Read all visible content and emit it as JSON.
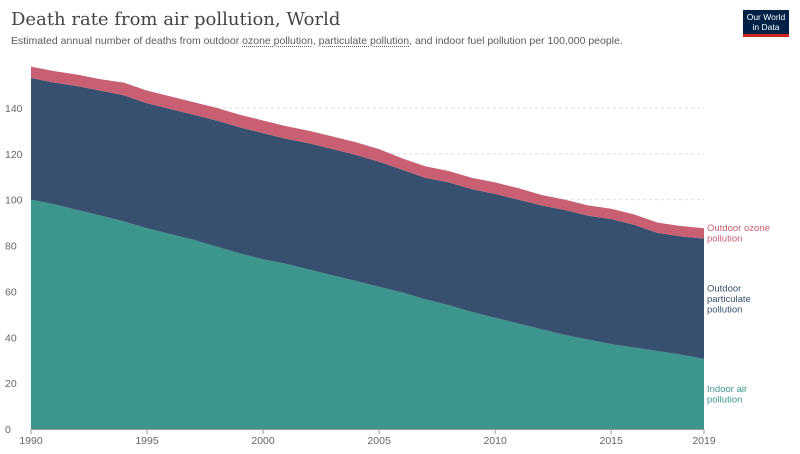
{
  "header": {
    "title": "Death rate from air pollution, World",
    "subtitle_start": "Estimated annual number of deaths from outdoor ",
    "subtitle_link1": "ozone pollution",
    "subtitle_mid": ", ",
    "subtitle_link2": "particulate pollution",
    "subtitle_end": ", and indoor fuel pollution per 100,000 people."
  },
  "logo": {
    "line1": "Our World",
    "line2": "in Data",
    "bg": "#002147",
    "accent": "#ce261e"
  },
  "chart_data": {
    "type": "area",
    "stacked": true,
    "title": "Death rate from air pollution, World",
    "x": [
      1990,
      1991,
      1992,
      1993,
      1994,
      1995,
      1996,
      1997,
      1998,
      1999,
      2000,
      2001,
      2002,
      2003,
      2004,
      2005,
      2006,
      2007,
      2008,
      2009,
      2010,
      2011,
      2012,
      2013,
      2014,
      2015,
      2016,
      2017,
      2018,
      2019
    ],
    "ylim": [
      0,
      160
    ],
    "yticks": [
      0,
      20,
      40,
      60,
      80,
      100,
      120,
      140
    ],
    "xticks": [
      1990,
      1995,
      2000,
      2005,
      2010,
      2015,
      2019
    ],
    "grid": "horizontal dashed",
    "series": [
      {
        "name": "Indoor air pollution",
        "color": "#3d968e",
        "values": [
          100,
          98,
          95.5,
          93,
          90.5,
          87.5,
          85,
          82.5,
          79.5,
          76.5,
          74,
          72,
          69.5,
          67,
          64.5,
          62,
          59.5,
          56.5,
          54,
          51,
          48.5,
          46,
          43.5,
          41,
          39,
          37,
          35.5,
          34,
          32.5,
          30.5
        ]
      },
      {
        "name": "Outdoor particulate pollution",
        "color": "#38506f",
        "values": [
          53,
          53,
          54,
          54.5,
          55,
          54.5,
          54.5,
          54.5,
          55,
          55,
          55,
          54.5,
          55,
          55,
          55,
          54.5,
          53.5,
          53,
          53.5,
          53.5,
          54,
          54,
          54,
          54.5,
          54,
          54.5,
          53.5,
          51.5,
          51.5,
          52.5
        ]
      },
      {
        "name": "Outdoor ozone pollution",
        "color": "#c95f72",
        "values": [
          5,
          5,
          5,
          5,
          5.5,
          5.5,
          5.5,
          5.5,
          5.5,
          5.5,
          5.5,
          5.5,
          5.5,
          5.5,
          5.5,
          5.5,
          5,
          5,
          5,
          5,
          5,
          5,
          4.5,
          4.5,
          4.5,
          4.5,
          4.5,
          4.5,
          4.5,
          4.5
        ]
      }
    ],
    "end_labels": [
      {
        "series": "Outdoor ozone pollution",
        "lines": [
          "Outdoor ozone",
          "pollution"
        ]
      },
      {
        "series": "Outdoor particulate pollution",
        "lines": [
          "Outdoor",
          "particulate",
          "pollution"
        ]
      },
      {
        "series": "Indoor air pollution",
        "lines": [
          "Indoor air",
          "pollution"
        ]
      }
    ]
  }
}
